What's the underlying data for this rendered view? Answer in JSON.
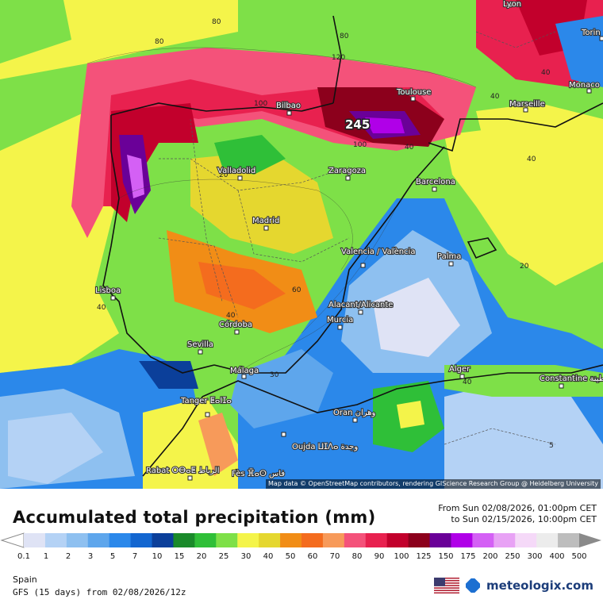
{
  "map": {
    "cities": [
      "Lyon",
      "Torin",
      "Monaco",
      "Marseille",
      "Toulouse",
      "Bilbao",
      "Valladolid",
      "Zaragoza",
      "Barcelona",
      "Madrid",
      "Valencia / València",
      "Palma",
      "Lisboa",
      "Córdoba",
      "Sevilla",
      "Alacant/Alicante",
      "Murcia",
      "Málaga",
      "Tanger ⵟⴰⵏⵊⴰ",
      "Alger",
      "Constantine قسنطينة",
      "Oran وهران",
      "Oujda ⵡⵊⴷⴰ وجدة",
      "Rabat ⵔⴱⴰⵟ الرباط",
      "Fès ⴼⴰⵙ فاس"
    ],
    "contour_labels": [
      "80",
      "80",
      "80",
      "120",
      "100",
      "100",
      "40",
      "40",
      "40",
      "40",
      "40",
      "40",
      "40",
      "20",
      "20",
      "30",
      "60",
      "5"
    ],
    "peak_value": "245",
    "attribution": "Map data © OpenStreetMap contributors, rendering GIScience Research Group @ Heidelberg University"
  },
  "legend": {
    "title": "Accumulated total precipitation (mm)",
    "from": "From Sun 02/08/2026, 01:00pm CET",
    "to": "to Sun 02/15/2026, 10:00pm CET",
    "ticks": [
      "0.1",
      "1",
      "2",
      "3",
      "5",
      "7",
      "10",
      "15",
      "20",
      "25",
      "30",
      "40",
      "50",
      "60",
      "70",
      "80",
      "90",
      "100",
      "125",
      "150",
      "175",
      "200",
      "250",
      "300",
      "400",
      "500"
    ],
    "colors": [
      "#dfe3f5",
      "#b4d2f5",
      "#8ec0f0",
      "#5ea6ec",
      "#2b88ea",
      "#1366d0",
      "#0b3f9a",
      "#1a8a2a",
      "#2fbf38",
      "#7ee048",
      "#f4f44a",
      "#e5d72f",
      "#f18d16",
      "#f46c1e",
      "#f79a5a",
      "#f4527a",
      "#e8214f",
      "#c2002c",
      "#8c001c",
      "#6a0098",
      "#b000e8",
      "#d460f5",
      "#e8a2f5",
      "#f5d9f8",
      "#ececec",
      "#bdbdbd"
    ],
    "region": "Spain",
    "model": "GFS (15 days) from  02/08/2026/12z",
    "brand": "meteologix.com"
  }
}
